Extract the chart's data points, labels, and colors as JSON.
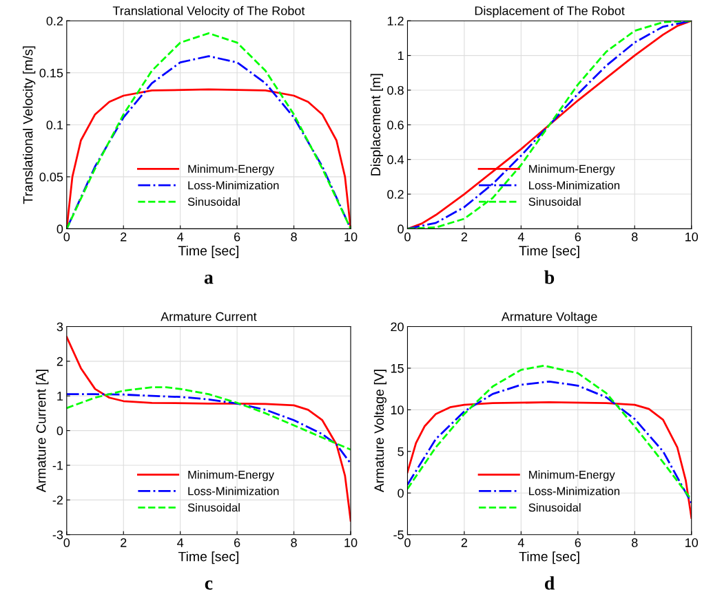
{
  "chart_data": [
    {
      "type": "line",
      "title": "Translational Velocity of The Robot",
      "xlabel": "Time [sec]",
      "ylabel": "Translational Velocity [m/s]",
      "annotations": [
        "a"
      ],
      "xlim": [
        0,
        10
      ],
      "ylim": [
        0,
        0.2
      ],
      "xticks": [
        0,
        2,
        4,
        6,
        8,
        10
      ],
      "yticks": [
        0,
        0.05,
        0.1,
        0.15,
        0.2
      ],
      "grid": true,
      "legend": "bottom",
      "series": [
        {
          "name": "Minimum-Energy",
          "color": "#ff0000",
          "line_style": "solid",
          "x": [
            0,
            0.2,
            0.5,
            1,
            1.5,
            2,
            3,
            5,
            7,
            8,
            8.5,
            9,
            9.5,
            9.8,
            10
          ],
          "values": [
            0,
            0.05,
            0.085,
            0.11,
            0.122,
            0.128,
            0.133,
            0.134,
            0.133,
            0.128,
            0.122,
            0.11,
            0.085,
            0.05,
            0
          ]
        },
        {
          "name": "Loss-Minimization",
          "color": "#0000ff",
          "line_style": "dashdot",
          "x": [
            0,
            1,
            2,
            3,
            4,
            5,
            6,
            7,
            8,
            9,
            10
          ],
          "values": [
            0,
            0.06,
            0.107,
            0.14,
            0.16,
            0.166,
            0.16,
            0.14,
            0.107,
            0.06,
            0
          ]
        },
        {
          "name": "Sinusoidal",
          "color": "#00ff00",
          "line_style": "dashed",
          "x": [
            0,
            1,
            2,
            3,
            4,
            5,
            6,
            7,
            8,
            9,
            10
          ],
          "values": [
            0,
            0.058,
            0.11,
            0.152,
            0.179,
            0.188,
            0.179,
            0.152,
            0.11,
            0.058,
            0
          ]
        }
      ]
    },
    {
      "type": "line",
      "title": "Displacement of The Robot",
      "xlabel": "Time [sec]",
      "ylabel": "Displacement [m]",
      "annotations": [
        "b"
      ],
      "xlim": [
        0,
        10
      ],
      "ylim": [
        0,
        1.2
      ],
      "xticks": [
        0,
        2,
        4,
        6,
        8,
        10
      ],
      "yticks": [
        0,
        0.2,
        0.4,
        0.6,
        0.8,
        1,
        1.2
      ],
      "grid": true,
      "legend": "bottom",
      "series": [
        {
          "name": "Minimum-Energy",
          "color": "#ff0000",
          "line_style": "solid",
          "x": [
            0,
            0.5,
            1,
            2,
            3,
            4,
            5,
            6,
            7,
            8,
            9,
            9.5,
            10
          ],
          "values": [
            0,
            0.03,
            0.08,
            0.2,
            0.33,
            0.46,
            0.6,
            0.74,
            0.87,
            1.0,
            1.12,
            1.17,
            1.2
          ]
        },
        {
          "name": "Loss-Minimization",
          "color": "#0000ff",
          "line_style": "dashdot",
          "x": [
            0,
            1,
            2,
            3,
            4,
            5,
            6,
            7,
            8,
            9,
            10
          ],
          "values": [
            0,
            0.034,
            0.125,
            0.259,
            0.422,
            0.6,
            0.778,
            0.941,
            1.075,
            1.166,
            1.2
          ]
        },
        {
          "name": "Sinusoidal",
          "color": "#00ff00",
          "line_style": "dashed",
          "x": [
            0,
            1,
            2,
            3,
            4,
            5,
            6,
            7,
            8,
            9,
            10
          ],
          "values": [
            0,
            0.008,
            0.058,
            0.178,
            0.368,
            0.6,
            0.832,
            1.022,
            1.142,
            1.192,
            1.2
          ]
        }
      ]
    },
    {
      "type": "line",
      "title": "Armature Current",
      "xlabel": "Time [sec]",
      "ylabel": "Armature Current [A]",
      "annotations": [
        "c"
      ],
      "xlim": [
        0,
        10
      ],
      "ylim": [
        -3,
        3
      ],
      "xticks": [
        0,
        2,
        4,
        6,
        8,
        10
      ],
      "yticks": [
        -3,
        -2,
        -1,
        0,
        1,
        2,
        3
      ],
      "grid": true,
      "legend": "bottom",
      "series": [
        {
          "name": "Minimum-Energy",
          "color": "#ff0000",
          "line_style": "solid",
          "x": [
            0,
            0.5,
            1,
            1.5,
            2,
            3,
            5,
            6,
            7,
            8,
            8.5,
            9,
            9.5,
            9.8,
            10
          ],
          "values": [
            2.7,
            1.8,
            1.2,
            0.95,
            0.85,
            0.8,
            0.78,
            0.78,
            0.77,
            0.73,
            0.6,
            0.3,
            -0.4,
            -1.3,
            -2.6
          ]
        },
        {
          "name": "Loss-Minimization",
          "color": "#0000ff",
          "line_style": "dashdot",
          "x": [
            0,
            1,
            2,
            3,
            4,
            5,
            6,
            7,
            8,
            9,
            9.5,
            10
          ],
          "values": [
            1.05,
            1.05,
            1.04,
            1.0,
            0.97,
            0.9,
            0.78,
            0.6,
            0.3,
            -0.1,
            -0.4,
            -0.95
          ]
        },
        {
          "name": "Sinusoidal",
          "color": "#00ff00",
          "line_style": "dashed",
          "x": [
            0,
            1,
            2,
            3,
            3.5,
            4,
            5,
            6,
            7,
            8,
            9,
            10
          ],
          "values": [
            0.65,
            0.95,
            1.15,
            1.25,
            1.25,
            1.2,
            1.05,
            0.8,
            0.5,
            0.15,
            -0.2,
            -0.55
          ]
        }
      ]
    },
    {
      "type": "line",
      "title": "Armature Voltage",
      "xlabel": "Time [sec]",
      "ylabel": "Armature Voltage [V]",
      "annotations": [
        "d"
      ],
      "xlim": [
        0,
        10
      ],
      "ylim": [
        -5,
        20
      ],
      "xticks": [
        0,
        2,
        4,
        6,
        8,
        10
      ],
      "yticks": [
        -5,
        0,
        5,
        10,
        15,
        20
      ],
      "grid": true,
      "legend": "bottom",
      "series": [
        {
          "name": "Minimum-Energy",
          "color": "#ff0000",
          "line_style": "solid",
          "x": [
            0,
            0.3,
            0.6,
            1,
            1.5,
            2,
            3,
            5,
            7,
            8,
            8.5,
            9,
            9.5,
            9.8,
            10
          ],
          "values": [
            2.5,
            6,
            8,
            9.5,
            10.3,
            10.6,
            10.8,
            10.9,
            10.8,
            10.6,
            10.1,
            8.8,
            5.5,
            1.5,
            -3
          ]
        },
        {
          "name": "Loss-Minimization",
          "color": "#0000ff",
          "line_style": "dashdot",
          "x": [
            0,
            1,
            2,
            3,
            4,
            5,
            6,
            7,
            8,
            9,
            10
          ],
          "values": [
            1.0,
            6.5,
            9.8,
            11.9,
            13.0,
            13.4,
            12.9,
            11.5,
            8.9,
            5.0,
            -1.2
          ]
        },
        {
          "name": "Sinusoidal",
          "color": "#00ff00",
          "line_style": "dashed",
          "x": [
            0,
            1,
            2,
            3,
            4,
            4.8,
            6,
            7,
            8,
            9,
            10
          ],
          "values": [
            0.5,
            5.5,
            9.5,
            12.8,
            14.8,
            15.3,
            14.4,
            12.0,
            8.0,
            3.7,
            -0.8
          ]
        }
      ]
    }
  ]
}
